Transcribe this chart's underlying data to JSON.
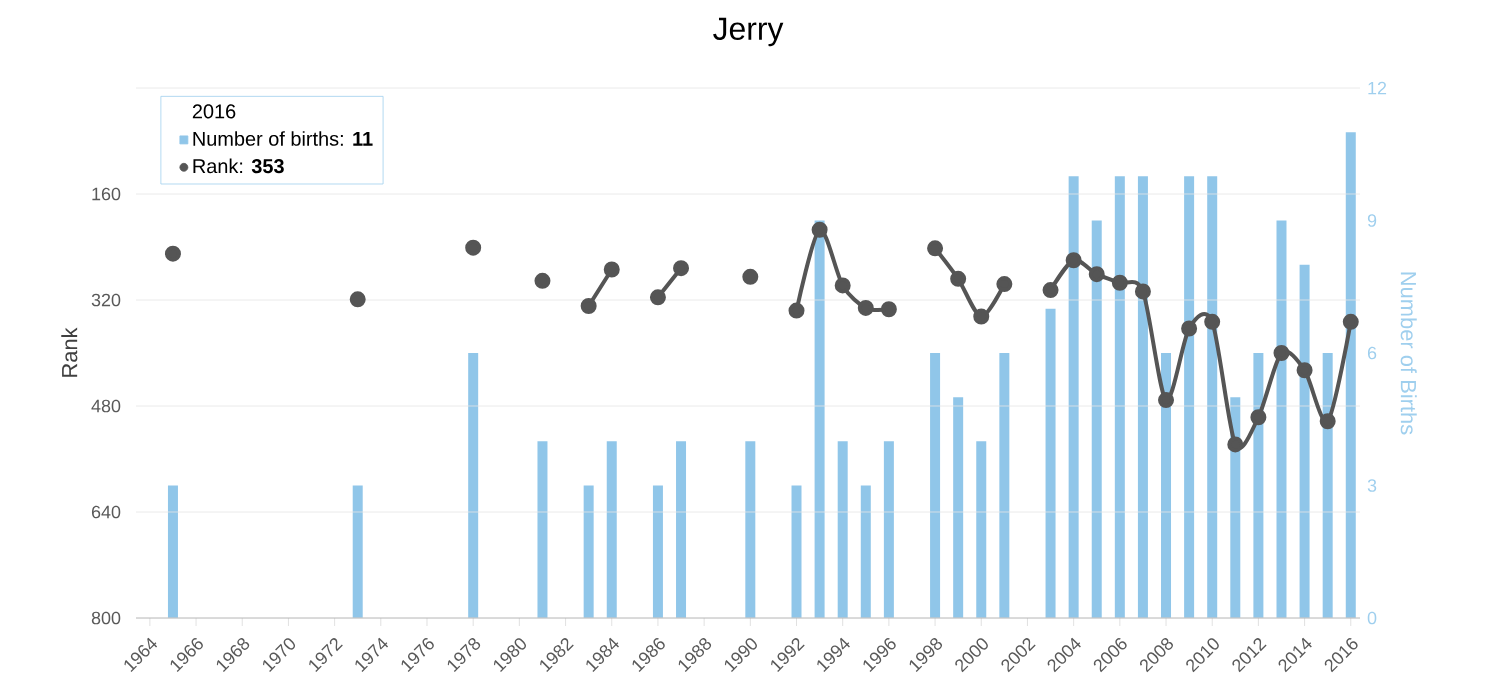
{
  "chart_data": {
    "type": "bar",
    "title": "Jerry",
    "ylabel": "Rank",
    "y2label": "Number of Births",
    "x": [
      1965,
      1966,
      1967,
      1968,
      1969,
      1970,
      1971,
      1972,
      1973,
      1974,
      1975,
      1976,
      1977,
      1978,
      1979,
      1980,
      1981,
      1982,
      1983,
      1984,
      1985,
      1986,
      1987,
      1988,
      1989,
      1990,
      1991,
      1992,
      1993,
      1994,
      1995,
      1996,
      1997,
      1998,
      1999,
      2000,
      2001,
      2002,
      2003,
      2004,
      2005,
      2006,
      2007,
      2008,
      2009,
      2010,
      2011,
      2012,
      2013,
      2014,
      2015,
      2016
    ],
    "series": [
      {
        "name": "Number of births: **11**",
        "axis": "y2",
        "color": "#90c6e9",
        "values": [
          3,
          null,
          null,
          null,
          null,
          null,
          null,
          null,
          3,
          null,
          null,
          null,
          null,
          6,
          null,
          null,
          4,
          null,
          3,
          4,
          null,
          3,
          4,
          null,
          null,
          4,
          null,
          3,
          9,
          4,
          3,
          4,
          null,
          6,
          5,
          4,
          6,
          null,
          7,
          10,
          9,
          10,
          10,
          6,
          10,
          10,
          5,
          6,
          9,
          8,
          6,
          11
        ]
      },
      {
        "name": "Rank: **353**",
        "type": "line",
        "color": "#555555",
        "marker": "circle",
        "line_style": "solid",
        "values": [
          250,
          null,
          null,
          null,
          null,
          null,
          null,
          null,
          319,
          null,
          null,
          null,
          null,
          241,
          null,
          null,
          291,
          null,
          329,
          274,
          null,
          316,
          272,
          null,
          null,
          285,
          null,
          336,
          214,
          298,
          332,
          334,
          null,
          242,
          288,
          345,
          296,
          null,
          305,
          260,
          281,
          294,
          307,
          471,
          363,
          353,
          538,
          497,
          400,
          426,
          503,
          353
        ]
      }
    ],
    "xlim": [
      1963.4,
      2016.4
    ],
    "xticks": [
      1964,
      1966,
      1968,
      1970,
      1972,
      1974,
      1976,
      1978,
      1980,
      1982,
      1984,
      1986,
      1988,
      1990,
      1992,
      1994,
      1996,
      1998,
      2000,
      2002,
      2004,
      2006,
      2008,
      2010,
      2012,
      2014,
      2016
    ],
    "ylim": [
      800,
      0
    ],
    "yticks": [
      {
        "value": 0,
        "label": null
      },
      160,
      320,
      480,
      640,
      800
    ],
    "y2lim": [
      0,
      12
    ],
    "y2ticks": [
      0,
      3,
      6,
      9,
      12
    ],
    "grid": "y",
    "legend": "top left",
    "legend_title": "2016"
  }
}
